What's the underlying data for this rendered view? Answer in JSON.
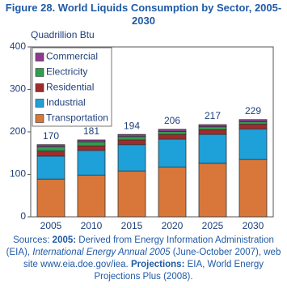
{
  "chart_data": {
    "type": "stacked-bar",
    "title": "Figure 28.  World Liquids Consumption by Sector, 2005-2030",
    "y_label": "Quadrillion Btu",
    "categories": [
      "2005",
      "2010",
      "2015",
      "2020",
      "2025",
      "2030"
    ],
    "series": [
      {
        "name": "Transportation",
        "color": "#d9773a",
        "values": [
          89,
          98,
          108,
          117,
          126,
          135
        ]
      },
      {
        "name": "Industrial",
        "color": "#1ea0d8",
        "values": [
          54,
          58,
          62,
          66,
          68,
          72
        ]
      },
      {
        "name": "Residential",
        "color": "#a22a2a",
        "values": [
          12,
          11,
          11,
          11,
          11,
          11
        ]
      },
      {
        "name": "Electricity",
        "color": "#2e9e4f",
        "values": [
          10,
          9,
          8,
          7,
          7,
          6
        ]
      },
      {
        "name": "Commercial",
        "color": "#8e3a8e",
        "values": [
          5,
          5,
          5,
          5,
          5,
          5
        ]
      }
    ],
    "totals": [
      170,
      181,
      194,
      206,
      217,
      229
    ],
    "ylim": [
      0,
      400
    ],
    "yticks": [
      0,
      100,
      200,
      300,
      400
    ],
    "legend": "top-left",
    "sources": [
      "Sources: ",
      "2005:",
      " Derived from Energy Information Administration (EIA), ",
      "International Energy Annual 2005",
      " (June-October 2007), web site www.eia.doe.gov/iea. ",
      "Projections:",
      " EIA, World Energy Projections Plus (2008)."
    ]
  }
}
